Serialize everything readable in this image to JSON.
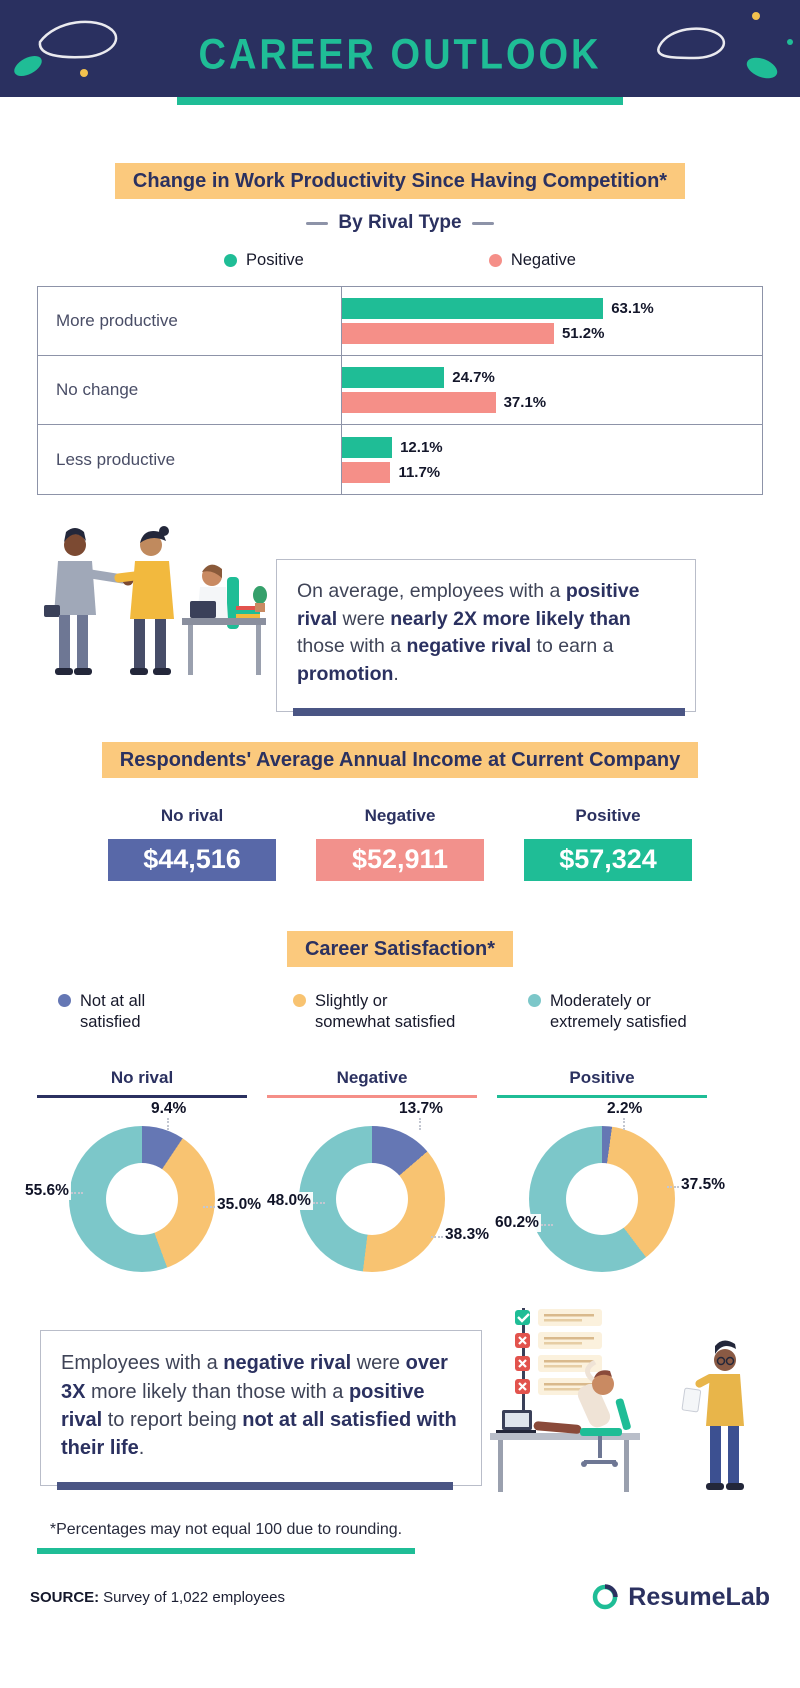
{
  "page": {
    "title": "CAREER OUTLOOK"
  },
  "palette": {
    "navy": "#2a3060",
    "teal": "#1fbd96",
    "salmon": "#f58f88",
    "band_orange": "#fbc97d",
    "income_blue": "#5868a8",
    "donut_blue": "#6577b4",
    "donut_orange": "#f8c371",
    "donut_teal": "#7cc7c9"
  },
  "productivity": {
    "title": "Change in Work Productivity Since Having Competition*",
    "subtitle": "By Rival Type",
    "legend": [
      {
        "label": "Positive",
        "color": "#1fbd96"
      },
      {
        "label": "Negative",
        "color": "#f58f88"
      }
    ],
    "rows": [
      {
        "label": "More productive",
        "positive": 63.1,
        "positive_label": "63.1%",
        "negative": 51.2,
        "negative_label": "51.2%"
      },
      {
        "label": "No change",
        "positive": 24.7,
        "positive_label": "24.7%",
        "negative": 37.1,
        "negative_label": "37.1%"
      },
      {
        "label": "Less productive",
        "positive": 12.1,
        "positive_label": "12.1%",
        "negative": 11.7,
        "negative_label": "11.7%"
      }
    ]
  },
  "promotion_callout": {
    "segments": [
      {
        "t": "On average, employees with a ",
        "b": false
      },
      {
        "t": "positive rival",
        "b": true
      },
      {
        "t": " were ",
        "b": false
      },
      {
        "t": "nearly 2X more likely than",
        "b": true
      },
      {
        "t": " those with a ",
        "b": false
      },
      {
        "t": "negative rival",
        "b": true
      },
      {
        "t": " to earn a ",
        "b": false
      },
      {
        "t": "promotion",
        "b": true
      },
      {
        "t": ".",
        "b": false
      }
    ]
  },
  "income": {
    "title": "Respondents' Average Annual Income at Current Company",
    "items": [
      {
        "label": "No rival",
        "value": "$44,516",
        "color": "#5868a8"
      },
      {
        "label": "Negative",
        "value": "$52,911",
        "color": "#f2918c"
      },
      {
        "label": "Positive",
        "value": "$57,324",
        "color": "#1fbd96"
      }
    ]
  },
  "satisfaction": {
    "title": "Career Satisfaction*",
    "legend": [
      {
        "label": "Not at all\nsatisfied",
        "color": "#6577b4"
      },
      {
        "label": "Slightly or\nsomewhat satisfied",
        "color": "#f8c371"
      },
      {
        "label": "Moderately or\nextremely satisfied",
        "color": "#7cc7c9"
      }
    ],
    "charts": [
      {
        "title": "No rival",
        "accent": "#2b3160",
        "not_at_all": 9.4,
        "not_label": "9.4%",
        "slightly": 35.0,
        "slight_label": "35.0%",
        "moderately": 55.6,
        "moderate_label": "55.6%"
      },
      {
        "title": "Negative",
        "accent": "#f58f88",
        "not_at_all": 13.7,
        "not_label": "13.7%",
        "slightly": 38.3,
        "slight_label": "38.3%",
        "moderately": 48.0,
        "moderate_label": "48.0%"
      },
      {
        "title": "Positive",
        "accent": "#1fbd96",
        "not_at_all": 2.2,
        "not_label": "2.2%",
        "slightly": 37.5,
        "slight_label": "37.5%",
        "moderately": 60.2,
        "moderate_label": "60.2%"
      }
    ]
  },
  "life_callout": {
    "segments": [
      {
        "t": "Employees with a ",
        "b": false
      },
      {
        "t": "negative rival",
        "b": true
      },
      {
        "t": " were ",
        "b": false
      },
      {
        "t": "over 3X",
        "b": true
      },
      {
        "t": " more likely than those with a ",
        "b": false
      },
      {
        "t": "positive rival",
        "b": true
      },
      {
        "t": " to report being ",
        "b": false
      },
      {
        "t": "not at all satisfied with their life",
        "b": true
      },
      {
        "t": ".",
        "b": false
      }
    ]
  },
  "footnote": "*Percentages may not equal 100 due to rounding.",
  "footer": {
    "source_label": "SOURCE:",
    "source_text": "Survey of 1,022 employees",
    "brand": {
      "name_primary": "Resume",
      "name_secondary": "Lab"
    }
  },
  "chart_data": [
    {
      "type": "bar",
      "orientation": "horizontal",
      "title": "Change in Work Productivity Since Having Competition*",
      "subtitle": "By Rival Type",
      "categories": [
        "More productive",
        "No change",
        "Less productive"
      ],
      "series": [
        {
          "name": "Positive",
          "values": [
            63.1,
            24.7,
            12.1
          ]
        },
        {
          "name": "Negative",
          "values": [
            51.2,
            37.1,
            11.7
          ]
        }
      ],
      "unit": "percent",
      "xlim": [
        0,
        100
      ],
      "legend_position": "top"
    },
    {
      "type": "table",
      "title": "Respondents' Average Annual Income at Current Company",
      "categories": [
        "No rival",
        "Negative",
        "Positive"
      ],
      "values": [
        44516,
        52911,
        57324
      ],
      "unit": "USD"
    },
    {
      "type": "pie",
      "donut": true,
      "title": "Career Satisfaction* — No rival",
      "labels": [
        "Not at all satisfied",
        "Slightly or somewhat satisfied",
        "Moderately or extremely satisfied"
      ],
      "values": [
        9.4,
        35.0,
        55.6
      ],
      "unit": "percent"
    },
    {
      "type": "pie",
      "donut": true,
      "title": "Career Satisfaction* — Negative",
      "labels": [
        "Not at all satisfied",
        "Slightly or somewhat satisfied",
        "Moderately or extremely satisfied"
      ],
      "values": [
        13.7,
        38.3,
        48.0
      ],
      "unit": "percent"
    },
    {
      "type": "pie",
      "donut": true,
      "title": "Career Satisfaction* — Positive",
      "labels": [
        "Not at all satisfied",
        "Slightly or somewhat satisfied",
        "Moderately or extremely satisfied"
      ],
      "values": [
        2.2,
        37.5,
        60.2
      ],
      "unit": "percent"
    }
  ]
}
